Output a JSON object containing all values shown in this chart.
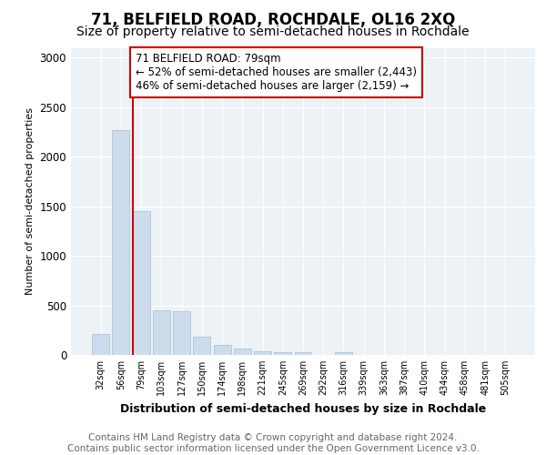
{
  "title": "71, BELFIELD ROAD, ROCHDALE, OL16 2XQ",
  "subtitle": "Size of property relative to semi-detached houses in Rochdale",
  "xlabel": "Distribution of semi-detached houses by size in Rochdale",
  "ylabel": "Number of semi-detached properties",
  "categories": [
    "32sqm",
    "56sqm",
    "79sqm",
    "103sqm",
    "127sqm",
    "150sqm",
    "174sqm",
    "198sqm",
    "221sqm",
    "245sqm",
    "269sqm",
    "292sqm",
    "316sqm",
    "339sqm",
    "363sqm",
    "387sqm",
    "410sqm",
    "434sqm",
    "458sqm",
    "481sqm",
    "505sqm"
  ],
  "values": [
    215,
    2270,
    1450,
    450,
    440,
    180,
    105,
    60,
    35,
    30,
    28,
    0,
    30,
    0,
    0,
    0,
    0,
    0,
    0,
    0,
    0
  ],
  "bar_color": "#ccdcec",
  "bar_edge_color": "#aabccc",
  "vline_color": "#cc0000",
  "annotation_box_edge_color": "#cc0000",
  "annotation_box_fill": "#ffffff",
  "ylim": [
    0,
    3100
  ],
  "yticks": [
    0,
    500,
    1000,
    1500,
    2000,
    2500,
    3000
  ],
  "annotation_text": "71 BELFIELD ROAD: 79sqm\n← 52% of semi-detached houses are smaller (2,443)\n46% of semi-detached houses are larger (2,159) →",
  "footer_text": "Contains HM Land Registry data © Crown copyright and database right 2024.\nContains public sector information licensed under the Open Government Licence v3.0.",
  "background_color": "#ffffff",
  "plot_bg_color": "#edf2f7",
  "grid_color": "#ffffff",
  "title_fontsize": 12,
  "subtitle_fontsize": 10,
  "tick_fontsize": 7,
  "ylabel_fontsize": 8,
  "xlabel_fontsize": 9,
  "annotation_fontsize": 8.5,
  "footer_fontsize": 7.5,
  "ytick_fontsize": 8.5,
  "highlight_bin": 2
}
